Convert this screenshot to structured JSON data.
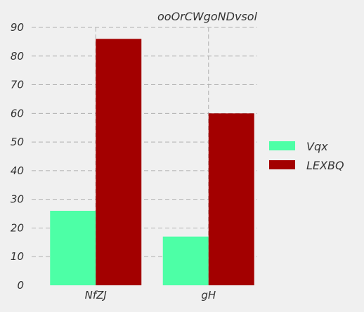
{
  "chart_data": {
    "type": "bar",
    "title": "ooOrCWgoNDvsol",
    "xlabel": "",
    "ylabel": "",
    "categories": [
      "NfZJ",
      "gH"
    ],
    "series": [
      {
        "name": "Vqx",
        "values": [
          26,
          17
        ],
        "color": "#4dffa6"
      },
      {
        "name": "LEXBQ",
        "values": [
          86,
          60
        ],
        "color": "#a30000"
      }
    ],
    "ylim": [
      0,
      90
    ],
    "yticks": [
      "0",
      "10",
      "20",
      "30",
      "40",
      "50",
      "60",
      "70",
      "80",
      "90"
    ],
    "grid": true,
    "legend_position": "right"
  }
}
